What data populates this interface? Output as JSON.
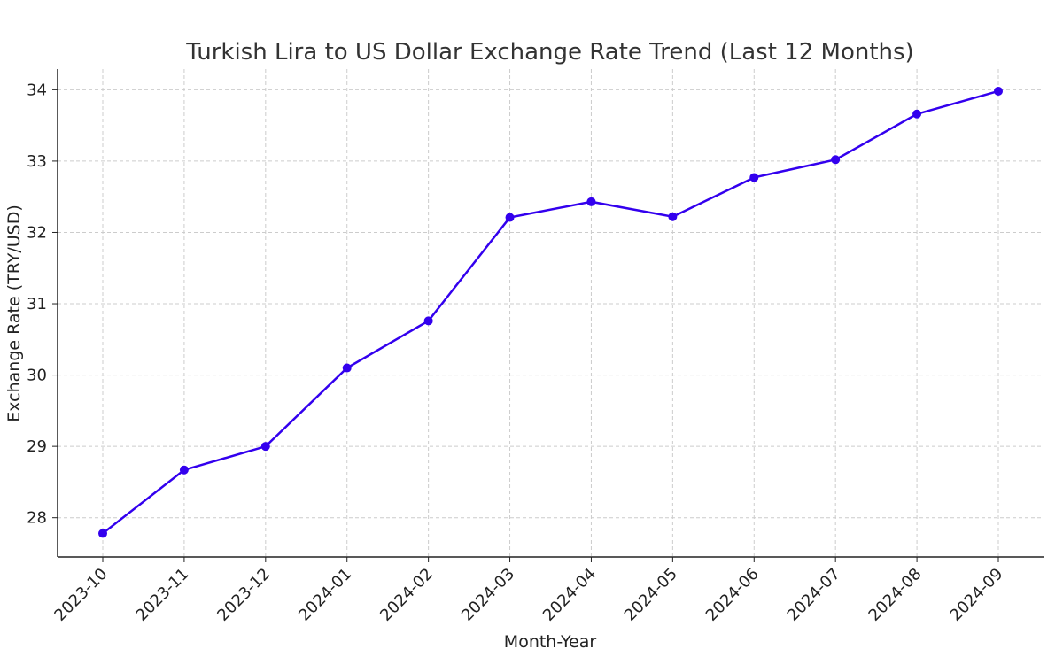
{
  "chart_data": {
    "type": "line",
    "title": "Turkish Lira to US Dollar Exchange Rate Trend (Last 12 Months)",
    "xlabel": "Month-Year",
    "ylabel": "Exchange Rate (TRY/USD)",
    "categories": [
      "2023-10",
      "2023-11",
      "2023-12",
      "2024-01",
      "2024-02",
      "2024-03",
      "2024-04",
      "2024-05",
      "2024-06",
      "2024-07",
      "2024-08",
      "2024-09"
    ],
    "series": [
      {
        "name": "TRY/USD",
        "values": [
          27.78,
          28.67,
          29.0,
          30.1,
          30.76,
          32.21,
          32.43,
          32.22,
          32.77,
          33.02,
          33.66,
          33.98
        ]
      }
    ],
    "yticks": [
      28,
      29,
      30,
      31,
      32,
      33,
      34
    ],
    "ylim": [
      27.45,
      34.29
    ],
    "grid": true,
    "color": "#3300ee"
  }
}
